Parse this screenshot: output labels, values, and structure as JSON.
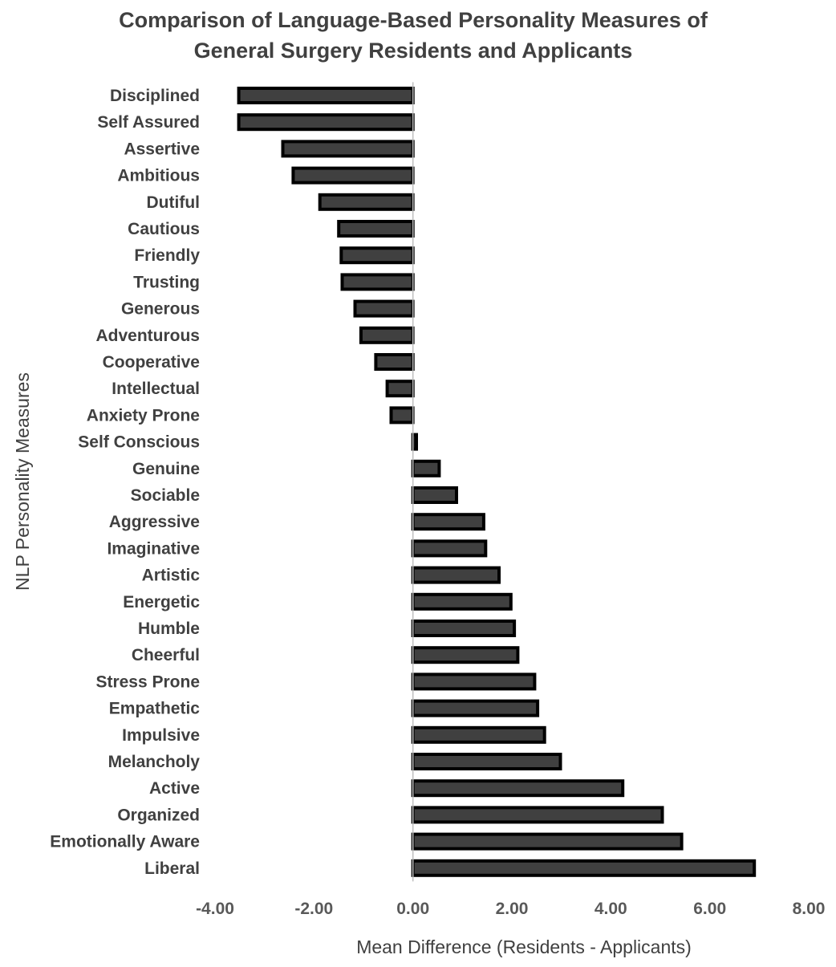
{
  "chart_data": {
    "type": "bar",
    "orientation": "horizontal",
    "title": [
      "Comparison of Language-Based Personality Measures of",
      "General Surgery Residents and Applicants"
    ],
    "xlabel": "Mean Difference (Residents - Applicants)",
    "ylabel": "NLP Personality Measures",
    "xlim": [
      -4,
      8
    ],
    "xticks": [
      -4,
      -2,
      0,
      2,
      4,
      6,
      8
    ],
    "xtick_labels": [
      "-4.00",
      "-2.00",
      "0.00",
      "2.00",
      "4.00",
      "6.00",
      "8.00"
    ],
    "grid": false,
    "legend": "none",
    "bar_fill": "#404040",
    "bar_edge": "#000000",
    "categories": [
      "Disciplined",
      "Self Assured",
      "Assertive",
      "Ambitious",
      "Dutiful",
      "Cautious",
      "Friendly",
      "Trusting",
      "Generous",
      "Adventurous",
      "Cooperative",
      "Intellectual",
      "Anxiety Prone",
      "Self Conscious",
      "Genuine",
      "Sociable",
      "Aggressive",
      "Imaginative",
      "Artistic",
      "Energetic",
      "Humble",
      "Cheerful",
      "Stress Prone",
      "Empathetic",
      "Impulsive",
      "Melancholy",
      "Active",
      "Organized",
      "Emotionally Aware",
      "Liberal"
    ],
    "values": [
      -3.52,
      -3.52,
      -2.63,
      -2.42,
      -1.88,
      -1.5,
      -1.45,
      -1.43,
      -1.17,
      -1.05,
      -0.75,
      -0.52,
      -0.44,
      0.07,
      0.53,
      0.88,
      1.43,
      1.47,
      1.74,
      1.98,
      2.05,
      2.12,
      2.46,
      2.52,
      2.66,
      2.98,
      4.24,
      5.04,
      5.43,
      6.9
    ]
  }
}
